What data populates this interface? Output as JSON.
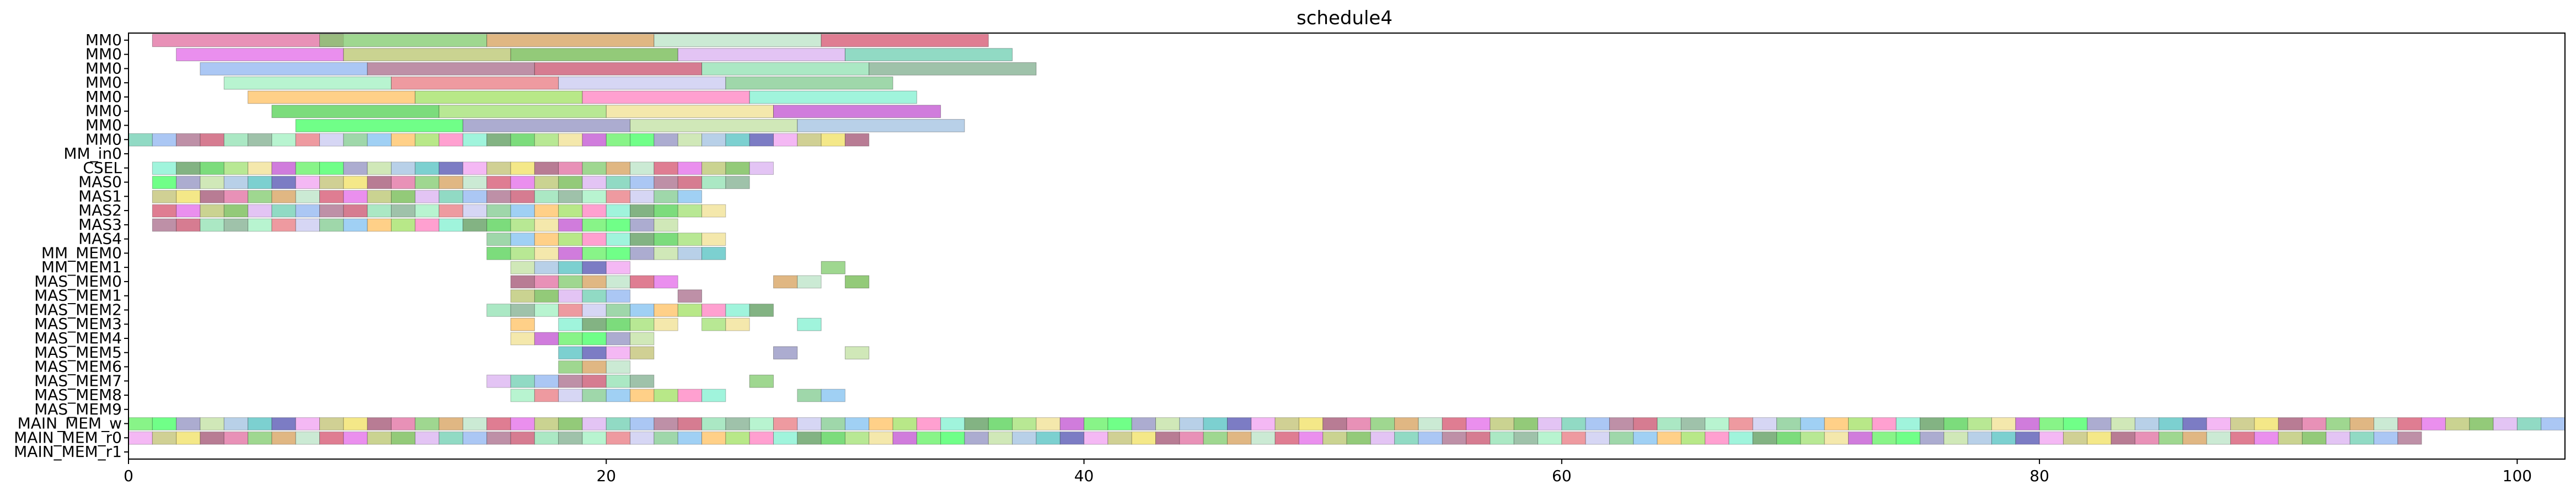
{
  "chart_data": {
    "type": "gantt",
    "title": "schedule4",
    "xlabel": "",
    "ylabel": "",
    "xlim": [
      0,
      102
    ],
    "grid": false,
    "x_ticks": [
      0,
      20,
      40,
      60,
      80,
      100
    ],
    "rows": [
      "MM0",
      "MM0",
      "MM0",
      "MM0",
      "MM0",
      "MM0",
      "MM0",
      "MM0",
      "MM_in0",
      "CSEL",
      "MAS0",
      "MAS1",
      "MAS2",
      "MAS3",
      "MAS4",
      "MM_MEM0",
      "MM_MEM1",
      "MAS_MEM0",
      "MAS_MEM1",
      "MAS_MEM2",
      "MAS_MEM3",
      "MAS_MEM4",
      "MAS_MEM5",
      "MAS_MEM6",
      "MAS_MEM7",
      "MAS_MEM8",
      "MAS_MEM9",
      "MAIN_MEM_w",
      "MAIN_MEM_r0",
      "MAIN_MEM_r1"
    ],
    "palette": [
      "#e06c9f",
      "#7fc96b",
      "#d69f5a",
      "#b9e3c6",
      "#d4526e",
      "#e36ae8",
      "#b8c46c",
      "#6fb84c",
      "#dab0f0",
      "#6ccdb0",
      "#8fb4f0",
      "#a86b8a",
      "#c8506c",
      "#8fe0b0",
      "#7fae8e",
      "#a0f0c0",
      "#e87880",
      "#c8c8f0",
      "#7fc98e",
      "#80c0f0",
      "#ffc060",
      "#a0e060",
      "#ff80c0",
      "#80f0d0",
      "#5a9a5a",
      "#50d050",
      "#a0e070",
      "#f0e090",
      "#c050d0",
      "#60f060",
      "#40ff60",
      "#9090c0",
      "#c0e0a0",
      "#a0c0e0",
      "#50c0c0",
      "#5050b0",
      "#f0a0f0",
      "#c0c070",
      "#f0e060",
      "#a05070"
    ],
    "series": [
      {
        "row": "MM0",
        "bars": [
          [
            1,
            8
          ],
          [
            8,
            7
          ],
          [
            15,
            7
          ],
          [
            22,
            7
          ],
          [
            29,
            7
          ]
        ]
      },
      {
        "row": "MM0",
        "bars": [
          [
            2,
            7
          ],
          [
            9,
            7
          ],
          [
            16,
            7
          ],
          [
            23,
            7
          ],
          [
            30,
            7
          ]
        ]
      },
      {
        "row": "MM0",
        "bars": [
          [
            3,
            7
          ],
          [
            10,
            7
          ],
          [
            17,
            7
          ],
          [
            24,
            7
          ],
          [
            31,
            7
          ]
        ]
      },
      {
        "row": "MM0",
        "bars": [
          [
            4,
            7
          ],
          [
            11,
            7
          ],
          [
            18,
            7
          ],
          [
            25,
            7
          ]
        ]
      },
      {
        "row": "MM0",
        "bars": [
          [
            5,
            7
          ],
          [
            12,
            7
          ],
          [
            19,
            7
          ],
          [
            26,
            7
          ]
        ]
      },
      {
        "row": "MM0",
        "bars": [
          [
            6,
            7
          ],
          [
            13,
            7
          ],
          [
            20,
            7
          ],
          [
            27,
            7
          ]
        ]
      },
      {
        "row": "MM0",
        "bars": [
          [
            7,
            7
          ],
          [
            14,
            7
          ],
          [
            21,
            7
          ],
          [
            28,
            7
          ]
        ]
      },
      {
        "row": "MM_in0",
        "bars": [
          [
            0,
            31
          ]
        ]
      },
      {
        "row": "CSEL",
        "bars": []
      },
      {
        "row": "MAS0",
        "bars": [
          [
            1,
            26
          ]
        ]
      },
      {
        "row": "MAS1",
        "bars": [
          [
            1,
            25
          ]
        ]
      },
      {
        "row": "MAS2",
        "bars": [
          [
            1,
            23
          ]
        ]
      },
      {
        "row": "MAS3",
        "bars": [
          [
            1,
            24
          ]
        ]
      },
      {
        "row": "MAS4",
        "bars": [
          [
            1,
            22
          ]
        ]
      },
      {
        "row": "MM_MEM0",
        "bars": [
          [
            15,
            10
          ]
        ]
      },
      {
        "row": "MM_MEM1",
        "bars": [
          [
            15,
            10
          ]
        ]
      },
      {
        "row": "MAS_MEM0",
        "bars": [
          [
            16,
            5
          ],
          [
            29,
            1
          ]
        ]
      },
      {
        "row": "MAS_MEM1",
        "bars": [
          [
            16,
            7
          ],
          [
            27,
            2
          ],
          [
            30,
            1
          ]
        ]
      },
      {
        "row": "MAS_MEM2",
        "bars": [
          [
            16,
            5
          ],
          [
            23,
            1
          ]
        ]
      },
      {
        "row": "MAS_MEM3",
        "bars": [
          [
            15,
            12
          ]
        ]
      },
      {
        "row": "MAS_MEM4",
        "bars": [
          [
            16,
            1
          ],
          [
            18,
            5
          ],
          [
            24,
            2
          ],
          [
            28,
            1
          ]
        ]
      },
      {
        "row": "MAS_MEM5",
        "bars": [
          [
            16,
            6
          ]
        ]
      },
      {
        "row": "MAS_MEM6",
        "bars": [
          [
            18,
            4
          ],
          [
            27,
            1
          ],
          [
            30,
            1
          ]
        ]
      },
      {
        "row": "MAS_MEM7",
        "bars": [
          [
            18,
            3
          ]
        ]
      },
      {
        "row": "MAS_MEM8",
        "bars": [
          [
            15,
            7
          ],
          [
            26,
            1
          ]
        ]
      },
      {
        "row": "MAS_MEM9",
        "bars": [
          [
            16,
            9
          ],
          [
            28,
            2
          ]
        ]
      },
      {
        "row": "MAIN_MEM_w",
        "bars": []
      },
      {
        "row": "MAIN_MEM_r0",
        "bars": [
          [
            0,
            102
          ]
        ]
      },
      {
        "row": "MAIN_MEM_r1",
        "bars": [
          [
            0,
            96
          ]
        ]
      }
    ]
  }
}
